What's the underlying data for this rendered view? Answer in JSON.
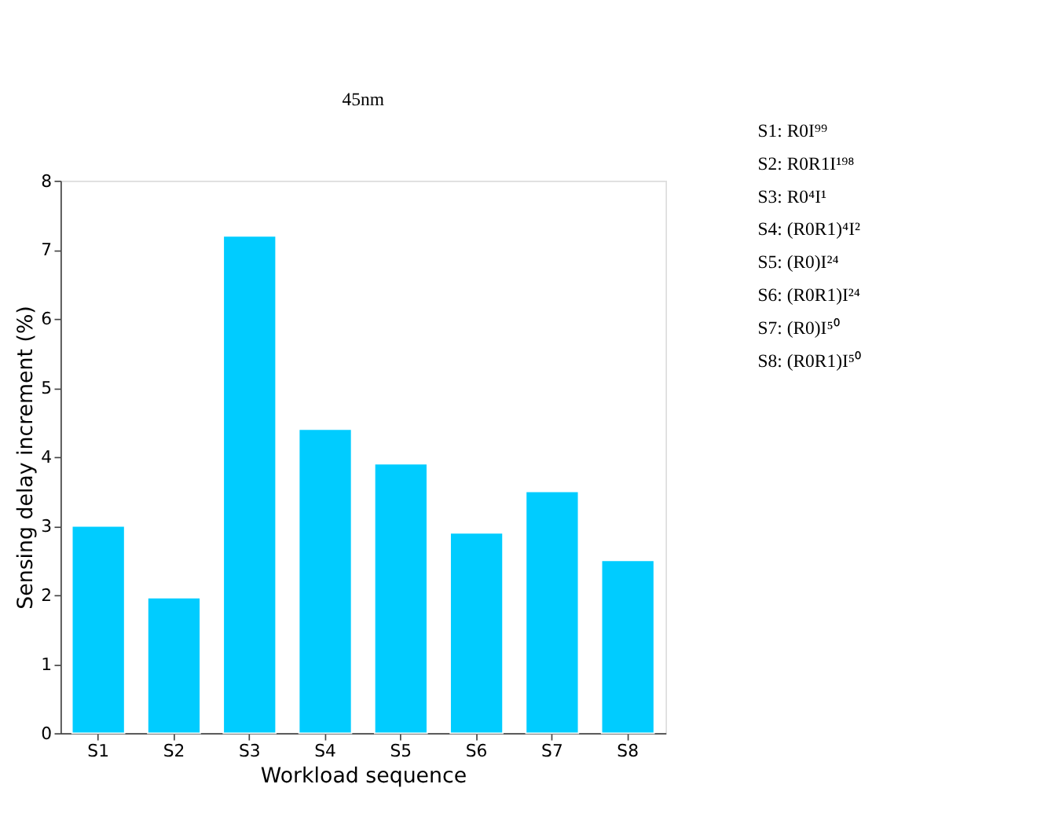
{
  "chart_data": {
    "type": "bar",
    "title": "45nm",
    "xlabel": "Workload sequence",
    "ylabel": "Sensing delay increment (%)",
    "categories": [
      "S1",
      "S2",
      "S3",
      "S4",
      "S5",
      "S6",
      "S7",
      "S8"
    ],
    "values": [
      3.0,
      1.96,
      7.2,
      4.4,
      3.9,
      2.9,
      3.5,
      2.5
    ],
    "color": "#00ccff",
    "ylim": [
      0,
      8
    ],
    "yticks": [
      0,
      1,
      2,
      3,
      4,
      5,
      6,
      7,
      8
    ],
    "grid": false,
    "annotations": [
      "S1: R0I⁹⁹",
      "S2: R0R1I¹⁹⁸",
      "S3: R0⁴I¹",
      "S4: (R0R1)⁴I²",
      "S5: (R0)I²⁴",
      "S6: (R0R1)I²⁴",
      "S7: (R0)I⁵⁰",
      "S8: (R0R1)I⁵⁰"
    ]
  }
}
